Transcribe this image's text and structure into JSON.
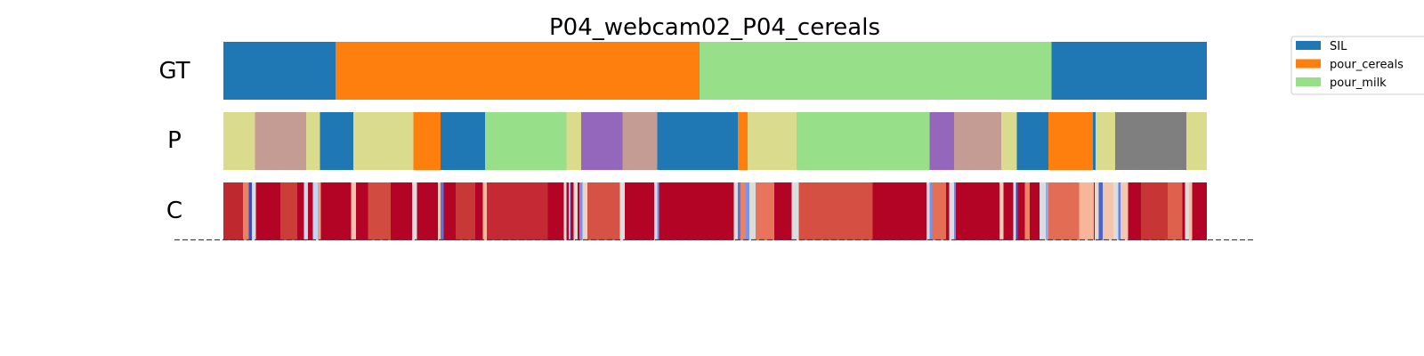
{
  "chart_data": {
    "type": "heatmap",
    "title": "P04_webcam02_P04_cereals",
    "rows": [
      "GT",
      "P",
      "C"
    ],
    "x_range": [
      0,
      1
    ],
    "colors": {
      "SIL": "#1f77b4",
      "pour_cereals": "#ff7f0e",
      "pour_milk": "#98df8a",
      "khaki": "#dbdb8d",
      "rosy": "#c49c94",
      "purple": "#9467bd",
      "gray": "#7f7f7f"
    },
    "legend": [
      {
        "label": "SIL",
        "color": "#1f77b4"
      },
      {
        "label": "pour_cereals",
        "color": "#ff7f0e"
      },
      {
        "label": "pour_milk",
        "color": "#98df8a"
      }
    ],
    "gt_segments": [
      {
        "start": 0.0,
        "end": 0.114,
        "label": "SIL"
      },
      {
        "start": 0.114,
        "end": 0.484,
        "label": "pour_cereals"
      },
      {
        "start": 0.484,
        "end": 0.842,
        "label": "pour_milk"
      },
      {
        "start": 0.842,
        "end": 1.0,
        "label": "SIL"
      }
    ],
    "p_segments": [
      {
        "start": 0.0,
        "end": 0.032,
        "color": "#dbdb8d"
      },
      {
        "start": 0.032,
        "end": 0.084,
        "color": "#c49c94"
      },
      {
        "start": 0.084,
        "end": 0.098,
        "color": "#dbdb8d"
      },
      {
        "start": 0.098,
        "end": 0.132,
        "color": "#1f77b4"
      },
      {
        "start": 0.132,
        "end": 0.193,
        "color": "#dbdb8d"
      },
      {
        "start": 0.193,
        "end": 0.221,
        "color": "#ff7f0e"
      },
      {
        "start": 0.221,
        "end": 0.266,
        "color": "#1f77b4"
      },
      {
        "start": 0.266,
        "end": 0.349,
        "color": "#98df8a"
      },
      {
        "start": 0.349,
        "end": 0.364,
        "color": "#dbdb8d"
      },
      {
        "start": 0.364,
        "end": 0.406,
        "color": "#9467bd"
      },
      {
        "start": 0.406,
        "end": 0.441,
        "color": "#c49c94"
      },
      {
        "start": 0.441,
        "end": 0.523,
        "color": "#1f77b4"
      },
      {
        "start": 0.523,
        "end": 0.533,
        "color": "#ff7f0e"
      },
      {
        "start": 0.533,
        "end": 0.583,
        "color": "#dbdb8d"
      },
      {
        "start": 0.583,
        "end": 0.718,
        "color": "#98df8a"
      },
      {
        "start": 0.718,
        "end": 0.743,
        "color": "#9467bd"
      },
      {
        "start": 0.743,
        "end": 0.791,
        "color": "#c49c94"
      },
      {
        "start": 0.791,
        "end": 0.807,
        "color": "#dbdb8d"
      },
      {
        "start": 0.807,
        "end": 0.839,
        "color": "#1f77b4"
      },
      {
        "start": 0.839,
        "end": 0.884,
        "color": "#ff7f0e"
      },
      {
        "start": 0.884,
        "end": 0.887,
        "color": "#1f77b4"
      },
      {
        "start": 0.887,
        "end": 0.907,
        "color": "#dbdb8d"
      },
      {
        "start": 0.907,
        "end": 0.979,
        "color": "#7f7f7f"
      },
      {
        "start": 0.979,
        "end": 1.0,
        "color": "#dbdb8d"
      }
    ],
    "c_base_color": "#b40426",
    "c_segments": [
      {
        "start": 0.0,
        "end": 0.02,
        "color": "#c0282f"
      },
      {
        "start": 0.02,
        "end": 0.026,
        "color": "#e58368"
      },
      {
        "start": 0.026,
        "end": 0.029,
        "color": "#3b4cc0"
      },
      {
        "start": 0.029,
        "end": 0.033,
        "color": "#dcdde1"
      },
      {
        "start": 0.058,
        "end": 0.075,
        "color": "#cb3e38"
      },
      {
        "start": 0.082,
        "end": 0.086,
        "color": "#ccd9ed"
      },
      {
        "start": 0.091,
        "end": 0.096,
        "color": "#c3d5f4"
      },
      {
        "start": 0.096,
        "end": 0.099,
        "color": "#e8a48b"
      },
      {
        "start": 0.13,
        "end": 0.135,
        "color": "#f0c5ad"
      },
      {
        "start": 0.147,
        "end": 0.17,
        "color": "#d24b40"
      },
      {
        "start": 0.192,
        "end": 0.197,
        "color": "#dcdde1"
      },
      {
        "start": 0.218,
        "end": 0.221,
        "color": "#f4c6af"
      },
      {
        "start": 0.221,
        "end": 0.224,
        "color": "#5875e1"
      },
      {
        "start": 0.236,
        "end": 0.256,
        "color": "#c83837"
      },
      {
        "start": 0.264,
        "end": 0.268,
        "color": "#f7b89c"
      },
      {
        "start": 0.268,
        "end": 0.33,
        "color": "#c52a34"
      },
      {
        "start": 0.346,
        "end": 0.349,
        "color": "#dddcdc"
      },
      {
        "start": 0.351,
        "end": 0.353,
        "color": "#9abbff"
      },
      {
        "start": 0.356,
        "end": 0.36,
        "color": "#e2dad5"
      },
      {
        "start": 0.362,
        "end": 0.365,
        "color": "#6f92f3"
      },
      {
        "start": 0.365,
        "end": 0.37,
        "color": "#ead4c8"
      },
      {
        "start": 0.37,
        "end": 0.404,
        "color": "#d65244"
      },
      {
        "start": 0.403,
        "end": 0.408,
        "color": "#dcdde1"
      },
      {
        "start": 0.438,
        "end": 0.441,
        "color": "#d5dbe5"
      },
      {
        "start": 0.441,
        "end": 0.443,
        "color": "#7093f3"
      },
      {
        "start": 0.519,
        "end": 0.523,
        "color": "#dddcdc"
      },
      {
        "start": 0.523,
        "end": 0.526,
        "color": "#5977e3"
      },
      {
        "start": 0.526,
        "end": 0.531,
        "color": "#ec8165"
      },
      {
        "start": 0.531,
        "end": 0.535,
        "color": "#7396f5"
      },
      {
        "start": 0.535,
        "end": 0.541,
        "color": "#dddcdc"
      },
      {
        "start": 0.541,
        "end": 0.56,
        "color": "#e7745b"
      },
      {
        "start": 0.578,
        "end": 0.585,
        "color": "#dcdde1"
      },
      {
        "start": 0.585,
        "end": 0.66,
        "color": "#d55042"
      },
      {
        "start": 0.715,
        "end": 0.718,
        "color": "#e0dbd8"
      },
      {
        "start": 0.718,
        "end": 0.721,
        "color": "#6f92f3"
      },
      {
        "start": 0.721,
        "end": 0.735,
        "color": "#e46e56"
      },
      {
        "start": 0.738,
        "end": 0.743,
        "color": "#dcdde1"
      },
      {
        "start": 0.743,
        "end": 0.745,
        "color": "#6788ee"
      },
      {
        "start": 0.789,
        "end": 0.793,
        "color": "#f2cbb7"
      },
      {
        "start": 0.803,
        "end": 0.806,
        "color": "#dcdde1"
      },
      {
        "start": 0.806,
        "end": 0.808,
        "color": "#3b4cc0"
      },
      {
        "start": 0.815,
        "end": 0.82,
        "color": "#ed8366"
      },
      {
        "start": 0.83,
        "end": 0.836,
        "color": "#d9dce1"
      },
      {
        "start": 0.836,
        "end": 0.839,
        "color": "#88abfd"
      },
      {
        "start": 0.839,
        "end": 0.87,
        "color": "#e36c55"
      },
      {
        "start": 0.87,
        "end": 0.885,
        "color": "#f7b599"
      },
      {
        "start": 0.886,
        "end": 0.89,
        "color": "#e8d6cc"
      },
      {
        "start": 0.89,
        "end": 0.894,
        "color": "#4a63d3"
      },
      {
        "start": 0.894,
        "end": 0.905,
        "color": "#f4c5ad"
      },
      {
        "start": 0.905,
        "end": 0.91,
        "color": "#dbdcde"
      },
      {
        "start": 0.91,
        "end": 0.912,
        "color": "#6180e9"
      },
      {
        "start": 0.912,
        "end": 0.92,
        "color": "#f3c7b1"
      },
      {
        "start": 0.933,
        "end": 0.96,
        "color": "#c73635"
      },
      {
        "start": 0.96,
        "end": 0.975,
        "color": "#de614d"
      },
      {
        "start": 0.978,
        "end": 0.982,
        "color": "#dcdde1"
      },
      {
        "start": 0.982,
        "end": 0.985,
        "color": "#f6bfa6"
      }
    ]
  }
}
